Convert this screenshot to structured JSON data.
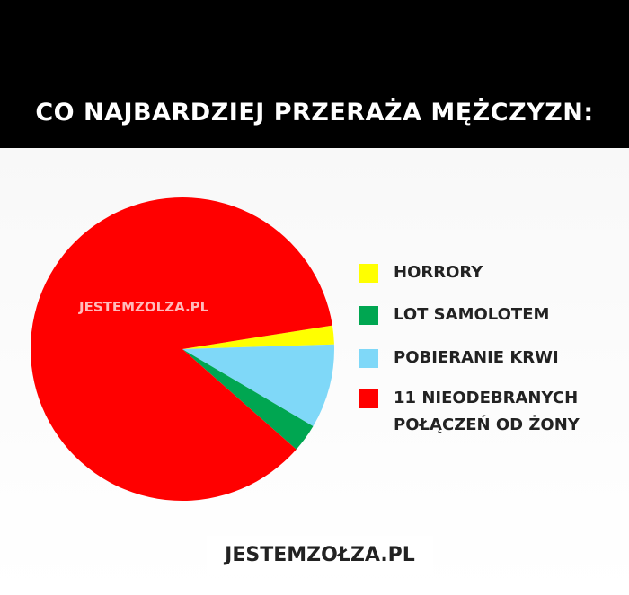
{
  "chart_data": {
    "type": "pie",
    "title": "CO NAJBARDZIEJ PRZERAŻA MĘŻCZYZN:",
    "categories": [
      "HORRORY",
      "LOT SAMOLOTEM",
      "POBIERANIE KRWI",
      "11 NIEODEBRANYCH POŁĄCZEŃ OD ŻONY"
    ],
    "values": [
      2,
      3,
      9,
      86
    ],
    "colors": [
      "#ffff00",
      "#00a651",
      "#7fd8f8",
      "#ff0000"
    ],
    "legend": "right"
  },
  "watermarks": [
    "JESTEMZOLZA.PL",
    "JESTEMZOŁZA.PL"
  ]
}
